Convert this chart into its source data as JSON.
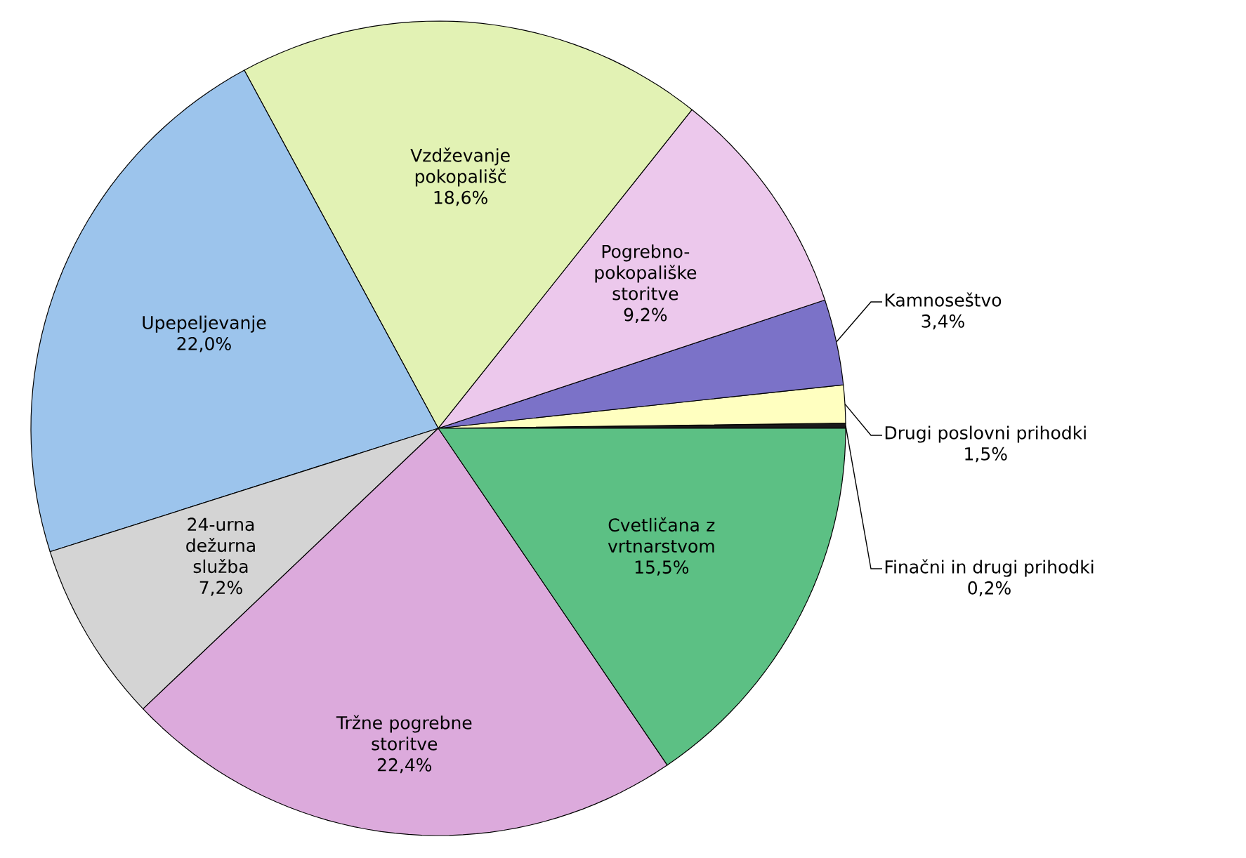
{
  "chart_data": {
    "type": "pie",
    "categories": [
      "Finačni in drugi prihodki",
      "Drugi poslovni prihodki",
      "Kamnoseštvo",
      "Pogrebno-pokopališke storitve",
      "Vzdževanje pokopališč",
      "Upepeljevanje",
      "24-urna dežurna služba",
      "Tržne pogrebne storitve",
      "Cvetličana z vrtnarstvom"
    ],
    "values": [
      0.2,
      1.5,
      3.4,
      9.2,
      18.6,
      22.0,
      7.2,
      22.4,
      15.5
    ],
    "colors": [
      "#1a1a1a",
      "#ffffc0",
      "#7b72c8",
      "#ecc8ec",
      "#e2f2b4",
      "#9cc4ec",
      "#d4d4d4",
      "#dcaadc",
      "#5cc084"
    ],
    "value_labels": [
      "0,2%",
      "1,5%",
      "3,4%",
      "9,2%",
      "18,6%",
      "22,0%",
      "7,2%",
      "22,4%",
      "15,5%"
    ]
  }
}
